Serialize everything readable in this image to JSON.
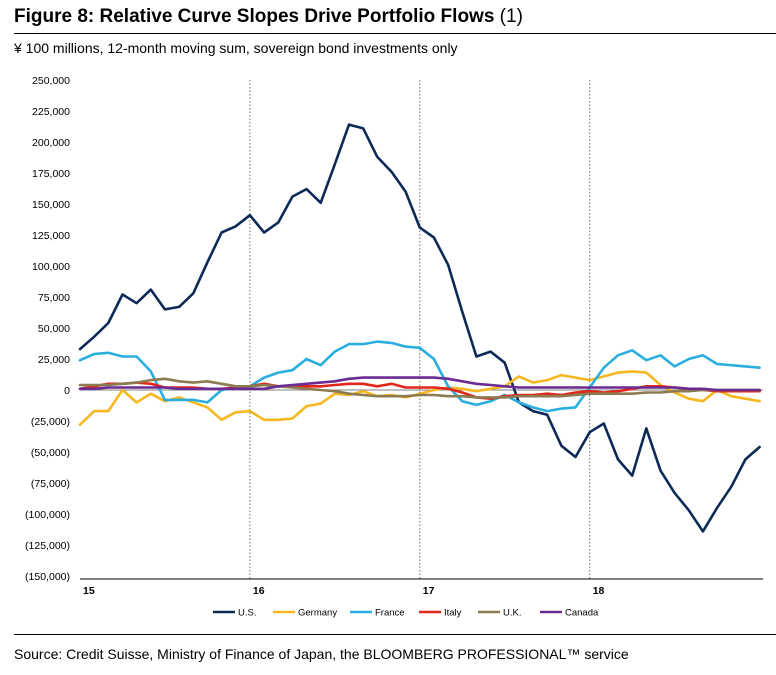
{
  "figure": {
    "title_bold": "Figure 8: Relative Curve Slopes Drive Portfolio Flows",
    "title_suffix": "(1)",
    "subtitle": "¥ 100 millions, 12-month moving sum, sovereign bond investments only",
    "source": "Source: Credit Suisse, Ministry of Finance of Japan, the BLOOMBERG PROFESSIONAL™ service"
  },
  "chart_data": {
    "type": "line",
    "title": "Relative Curve Slopes Drive Portfolio Flows",
    "xlabel": "",
    "ylabel": "¥ 100 millions",
    "xlim": [
      15,
      19.02
    ],
    "ylim": [
      -150000,
      250000
    ],
    "y_ticks": [
      250000,
      225000,
      200000,
      175000,
      150000,
      125000,
      100000,
      75000,
      50000,
      25000,
      0,
      -25000,
      -50000,
      -75000,
      -100000,
      -125000,
      -150000
    ],
    "y_tick_labels": [
      "250,000",
      "225,000",
      "200,000",
      "175,000",
      "150,000",
      "125,000",
      "100,000",
      "75,000",
      "50,000",
      "25,000",
      "0",
      "(25,000)",
      "(50,000)",
      "(75,000)",
      "(100,000)",
      "(125,000)",
      "(150,000)"
    ],
    "x_ticks": [
      15,
      16,
      17,
      18
    ],
    "x_tick_labels": [
      "15",
      "16",
      "17",
      "18"
    ],
    "vertical_dashed_lines_at": [
      16,
      17,
      18
    ],
    "grid": false,
    "legend_position": "bottom",
    "x_start": 15,
    "x_step": 0.08333,
    "series": [
      {
        "name": "U.S.",
        "color": "#0d2a57",
        "values": [
          33000,
          43000,
          54000,
          77000,
          70000,
          81000,
          65000,
          67000,
          78000,
          103000,
          127000,
          132000,
          141000,
          127000,
          135000,
          156000,
          162000,
          151000,
          182000,
          214000,
          211000,
          188000,
          176000,
          160000,
          131000,
          123000,
          101000,
          63000,
          27000,
          31000,
          22000,
          -10000,
          -17000,
          -20000,
          -45000,
          -54000,
          -34000,
          -27000,
          -56000,
          -69000,
          -31000,
          -65000,
          -83000,
          -97000,
          -114000,
          -95000,
          -78000,
          -56000,
          -46000
        ]
      },
      {
        "name": "Germany",
        "color": "#f5b820",
        "values": [
          -28000,
          -17000,
          -17000,
          0,
          -10000,
          -3000,
          -9000,
          -6000,
          -10000,
          -14000,
          -24000,
          -18000,
          -17000,
          -24000,
          -24000,
          -23000,
          -13000,
          -11000,
          -3000,
          -4000,
          -1000,
          -5000,
          -4000,
          -6000,
          -3000,
          0,
          2000,
          1000,
          -1000,
          1000,
          3000,
          11000,
          6000,
          8000,
          12000,
          10000,
          8000,
          11000,
          14000,
          15000,
          14000,
          4000,
          -2000,
          -7000,
          -9000,
          0,
          -5000,
          -7000,
          -9000
        ]
      },
      {
        "name": "France",
        "color": "#2aaee0",
        "values": [
          24000,
          29000,
          30000,
          27000,
          27000,
          15000,
          -8000,
          -8000,
          -8000,
          -10000,
          0,
          2000,
          3000,
          10000,
          14000,
          16000,
          25000,
          20000,
          31000,
          37000,
          37000,
          39000,
          38000,
          35000,
          34000,
          25000,
          3000,
          -9000,
          -12000,
          -9000,
          -4000,
          -10000,
          -14000,
          -17000,
          -15000,
          -14000,
          2000,
          18000,
          28000,
          32000,
          24000,
          28000,
          19000,
          25000,
          28000,
          21000,
          20000,
          19000,
          18000
        ]
      },
      {
        "name": "Italy",
        "color": "#e3261c",
        "values": [
          1000,
          3000,
          5000,
          5000,
          6000,
          5000,
          2000,
          2000,
          2000,
          1000,
          1000,
          2000,
          3000,
          5000,
          3000,
          3000,
          3000,
          3000,
          4000,
          5000,
          5000,
          3000,
          5000,
          2000,
          2000,
          2000,
          1000,
          -2000,
          -6000,
          -7000,
          -5000,
          -4000,
          -4000,
          -3000,
          -4000,
          -2000,
          -1000,
          -2000,
          -1000,
          1000,
          3000,
          3000,
          2000,
          1000,
          0,
          -1000,
          -1000,
          -1000,
          -1000
        ]
      },
      {
        "name": "U.K.",
        "color": "#8b7b50",
        "values": [
          4000,
          4000,
          4000,
          5000,
          6000,
          8000,
          9000,
          7000,
          6000,
          7000,
          5000,
          3000,
          3000,
          4000,
          3000,
          2000,
          1000,
          0,
          -1000,
          -3000,
          -4000,
          -5000,
          -5000,
          -5000,
          -4000,
          -4000,
          -5000,
          -5000,
          -6000,
          -6000,
          -6000,
          -5000,
          -5000,
          -5000,
          -5000,
          -4000,
          -3000,
          -3000,
          -3000,
          -3000,
          -2000,
          -2000,
          -1000,
          -1000,
          0,
          0,
          0,
          0,
          0
        ]
      },
      {
        "name": "Canada",
        "color": "#6a2c93",
        "values": [
          1000,
          1000,
          2000,
          2000,
          2000,
          2000,
          2000,
          1000,
          1000,
          1000,
          1000,
          1000,
          1000,
          1000,
          3000,
          4000,
          5000,
          6000,
          7000,
          9000,
          10000,
          10000,
          10000,
          10000,
          10000,
          10000,
          9000,
          7000,
          5000,
          4000,
          3000,
          2000,
          2000,
          2000,
          2000,
          2000,
          2000,
          2000,
          2000,
          2000,
          2000,
          2000,
          2000,
          1000,
          1000,
          0,
          0,
          0,
          0
        ]
      }
    ]
  }
}
